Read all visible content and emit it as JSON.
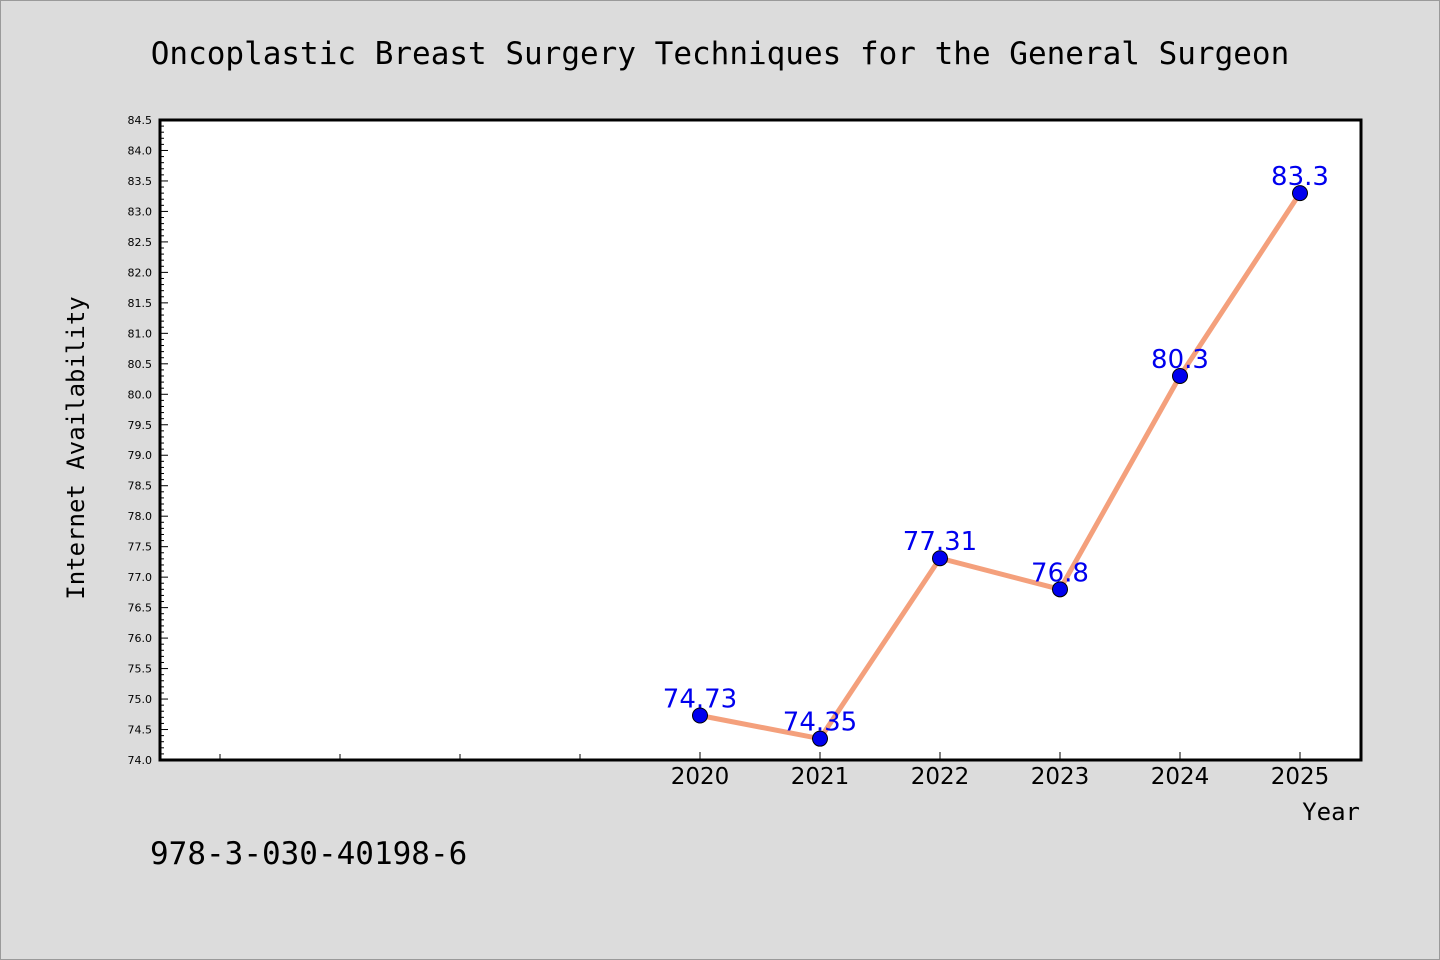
{
  "chart_data": {
    "type": "line",
    "title": "Oncoplastic Breast Surgery Techniques for the General Surgeon",
    "xlabel": "Year",
    "ylabel": "Internet Availability",
    "x": [
      "2020",
      "2021",
      "2022",
      "2023",
      "2024",
      "2025"
    ],
    "series": [
      {
        "values": [
          74.73,
          74.35,
          77.31,
          76.8,
          80.3,
          83.3
        ],
        "value_labels": [
          "74.73",
          "74.35",
          "77.31",
          "76.8",
          "80.3",
          "83.3"
        ]
      }
    ],
    "ylim": [
      74.0,
      84.5
    ],
    "yticks": [
      "74.0",
      "74.5",
      "75.0",
      "75.5",
      "76.0",
      "76.5",
      "77.0",
      "77.5",
      "78.0",
      "78.5",
      "79.0",
      "79.5",
      "80.0",
      "80.5",
      "81.0",
      "81.5",
      "82.0",
      "82.5",
      "83.0",
      "83.5",
      "84.0",
      "84.5"
    ],
    "line_color": "#f4a07c",
    "marker_color": "#0000ee",
    "label_color": "#0000ee",
    "grid": false,
    "legend": "none"
  },
  "footer": {
    "isbn": "978-3-030-40198-6"
  }
}
